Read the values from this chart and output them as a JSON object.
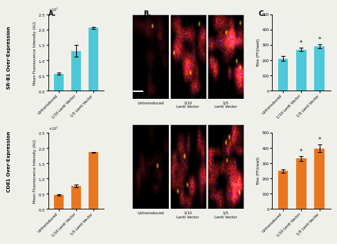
{
  "panel_A_top": {
    "ylabel": "Mean Fluorescence Intensity (AU)",
    "categories": [
      "Untransduced",
      "1/10 Lenti Vector",
      "1/5 Lenti Vector"
    ],
    "values": [
      5500000.0,
      13000000.0,
      20500000.0
    ],
    "errors": [
      300000.0,
      2000000.0,
      400000.0
    ],
    "color": "#4DC8D8",
    "ylim": [
      0,
      25000000.0
    ],
    "yticks": [
      0,
      5000000.0,
      10000000.0,
      15000000.0,
      20000000.0,
      25000000.0
    ]
  },
  "panel_A_bottom": {
    "ylabel": "Mean Fluorescence Intensity (AU)",
    "categories": [
      "Untransduced",
      "1/10 Lenti Vector",
      "1/5 Lenti Vector"
    ],
    "values": [
      4500000.0,
      7500000.0,
      18500000.0
    ],
    "errors": [
      200000.0,
      400000.0,
      200000.0
    ],
    "color": "#E8761E",
    "ylim": [
      0,
      25000000.0
    ],
    "yticks": [
      0,
      5000000.0,
      10000000.0,
      15000000.0,
      20000000.0,
      25000000.0
    ]
  },
  "panel_C_top": {
    "ylabel": "Titre (FFU/well)",
    "categories": [
      "Untransduced",
      "1/10 Lenti Vector",
      "1/5 Lenti Vector"
    ],
    "values": [
      210,
      268,
      290
    ],
    "errors": [
      15,
      12,
      15
    ],
    "color": "#4DC8D8",
    "ylim": [
      0,
      500
    ],
    "yticks": [
      0,
      100,
      200,
      300,
      400,
      500
    ],
    "stars": [
      false,
      true,
      true
    ]
  },
  "panel_C_bottom": {
    "ylabel": "Titre (FFU/well)",
    "categories": [
      "Untransduced",
      "1/10 Lenti Vector",
      "1/5 Lenti Vector"
    ],
    "values": [
      248,
      330,
      395
    ],
    "errors": [
      12,
      15,
      25
    ],
    "color": "#E8761E",
    "ylim": [
      0,
      500
    ],
    "yticks": [
      0,
      100,
      200,
      300,
      400,
      500
    ],
    "stars": [
      false,
      true,
      true
    ]
  },
  "label_A": "A.",
  "label_B": "B.",
  "label_C": "C.",
  "bg_color": "#F0F0EB",
  "side_label_top": "SR-B1 Over-Expression",
  "side_label_bottom": "CD81 Over-Expression",
  "img_labels_top": [
    "Untransduced",
    "1/10\nLenti Vector",
    "1/5\nLenti Vector"
  ],
  "img_labels_bottom": [
    "Untransduced",
    "1/10\nLenti Vector",
    "1/5\nLenti Vector"
  ]
}
